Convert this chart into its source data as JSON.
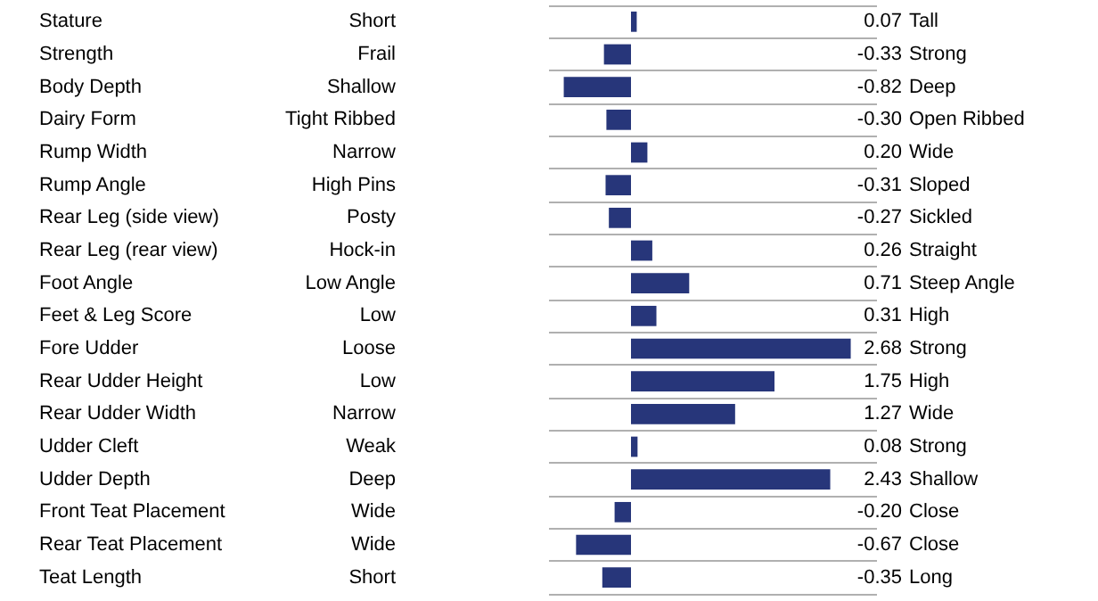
{
  "chart_data": {
    "type": "bar",
    "orientation": "horizontal",
    "grid": "y",
    "color": "#27367a",
    "categories": [
      "Stature",
      "Strength",
      "Body Depth",
      "Dairy Form",
      "Rump Width",
      "Rump Angle",
      "Rear Leg (side view)",
      "Rear Leg (rear view)",
      "Foot Angle",
      "Feet & Leg Score",
      "Fore Udder",
      "Rear Udder Height",
      "Rear Udder Width",
      "Udder Cleft",
      "Udder Depth",
      "Front Teat Placement",
      "Rear Teat Placement",
      "Teat Length"
    ],
    "values": [
      0.07,
      -0.33,
      -0.82,
      -0.3,
      0.2,
      -0.31,
      -0.27,
      0.26,
      0.71,
      0.31,
      2.68,
      1.75,
      1.27,
      0.08,
      2.43,
      -0.2,
      -0.67,
      -0.35
    ],
    "value_labels": [
      "0.07",
      "-0.33",
      "-0.82",
      "-0.30",
      "0.20",
      "-0.31",
      "-0.27",
      "0.26",
      "0.71",
      "0.31",
      "2.68",
      "1.75",
      "1.27",
      "0.08",
      "2.43",
      "-0.20",
      "-0.67",
      "-0.35"
    ],
    "annotations": [
      "Short",
      "Tall",
      "Frail",
      "Strong",
      "Shallow",
      "Deep",
      "Tight Ribbed",
      "Open Ribbed",
      "Narrow",
      "Wide",
      "High Pins",
      "Sloped",
      "Posty",
      "Sickled",
      "Hock-in",
      "Straight",
      "Low Angle",
      "Steep Angle",
      "Low",
      "High",
      "Loose",
      "Strong",
      "Low",
      "High",
      "Narrow",
      "Wide",
      "Weak",
      "Strong",
      "Deep",
      "Shallow",
      "Wide",
      "Close",
      "Wide",
      "Close",
      "Short",
      "Long"
    ]
  }
}
